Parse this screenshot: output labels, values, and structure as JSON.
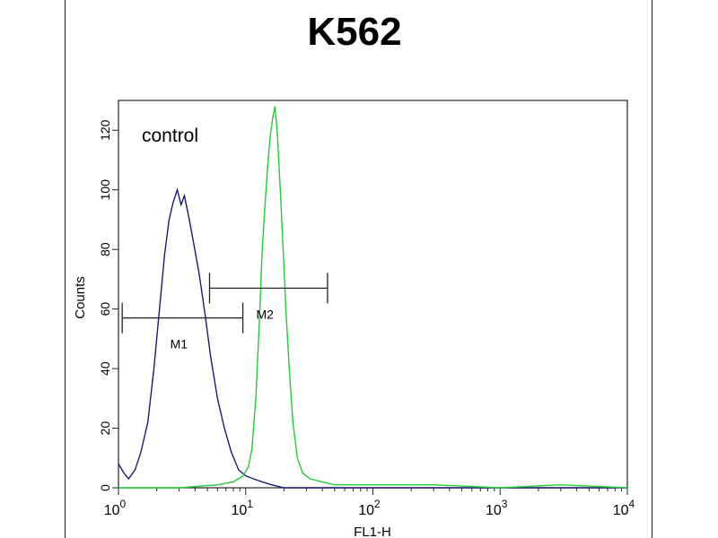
{
  "chart_data": {
    "type": "line",
    "title": "K562",
    "xlabel": "FL1-H",
    "ylabel": "Counts",
    "x_scale": "log",
    "xlim": [
      1,
      10000
    ],
    "ylim": [
      0,
      130
    ],
    "x_ticks": [
      {
        "value": 1,
        "base": "10",
        "exp": "0"
      },
      {
        "value": 10,
        "base": "10",
        "exp": "1"
      },
      {
        "value": 100,
        "base": "10",
        "exp": "2"
      },
      {
        "value": 1000,
        "base": "10",
        "exp": "3"
      },
      {
        "value": 10000,
        "base": "10",
        "exp": "4"
      }
    ],
    "y_ticks": [
      0,
      20,
      40,
      60,
      80,
      100,
      120
    ],
    "annotation": "control",
    "series": [
      {
        "name": "control",
        "color": "#1a1a7a",
        "points": [
          [
            1.0,
            8
          ],
          [
            1.1,
            5
          ],
          [
            1.2,
            3
          ],
          [
            1.35,
            6
          ],
          [
            1.5,
            12
          ],
          [
            1.7,
            22
          ],
          [
            1.9,
            40
          ],
          [
            2.1,
            60
          ],
          [
            2.3,
            78
          ],
          [
            2.5,
            90
          ],
          [
            2.7,
            96
          ],
          [
            2.9,
            100
          ],
          [
            3.1,
            95
          ],
          [
            3.3,
            98
          ],
          [
            3.6,
            90
          ],
          [
            3.9,
            82
          ],
          [
            4.3,
            72
          ],
          [
            4.8,
            58
          ],
          [
            5.3,
            44
          ],
          [
            6.0,
            30
          ],
          [
            6.8,
            20
          ],
          [
            7.7,
            12
          ],
          [
            8.8,
            6
          ],
          [
            10.0,
            4
          ],
          [
            11.5,
            3
          ],
          [
            13.5,
            2
          ],
          [
            16.0,
            1
          ],
          [
            20.0,
            0
          ],
          [
            30.0,
            0
          ],
          [
            100.0,
            0
          ],
          [
            1000.0,
            0
          ],
          [
            10000.0,
            0
          ]
        ]
      },
      {
        "name": "",
        "color": "#22cc33",
        "points": [
          [
            1.0,
            0
          ],
          [
            3.0,
            0
          ],
          [
            6.0,
            1
          ],
          [
            8.0,
            2
          ],
          [
            9.5,
            4
          ],
          [
            10.5,
            7
          ],
          [
            11.2,
            13
          ],
          [
            12.0,
            30
          ],
          [
            12.8,
            55
          ],
          [
            13.5,
            80
          ],
          [
            14.2,
            95
          ],
          [
            14.9,
            108
          ],
          [
            15.6,
            118
          ],
          [
            16.3,
            124
          ],
          [
            17.0,
            128
          ],
          [
            17.8,
            118
          ],
          [
            18.7,
            100
          ],
          [
            19.7,
            80
          ],
          [
            20.7,
            60
          ],
          [
            22.0,
            40
          ],
          [
            23.5,
            22
          ],
          [
            25.5,
            10
          ],
          [
            28.0,
            5
          ],
          [
            32.0,
            3
          ],
          [
            40.0,
            2
          ],
          [
            50.0,
            1
          ],
          [
            80.0,
            1
          ],
          [
            150.0,
            1
          ],
          [
            300.0,
            1
          ],
          [
            1000.0,
            0
          ],
          [
            3000.0,
            1
          ],
          [
            10000.0,
            0
          ]
        ]
      }
    ],
    "markers": [
      {
        "label": "M1",
        "x_start": 1.07,
        "x_end": 9.5,
        "y": 57
      },
      {
        "label": "M2",
        "x_start": 5.2,
        "x_end": 44,
        "y": 67
      }
    ]
  }
}
